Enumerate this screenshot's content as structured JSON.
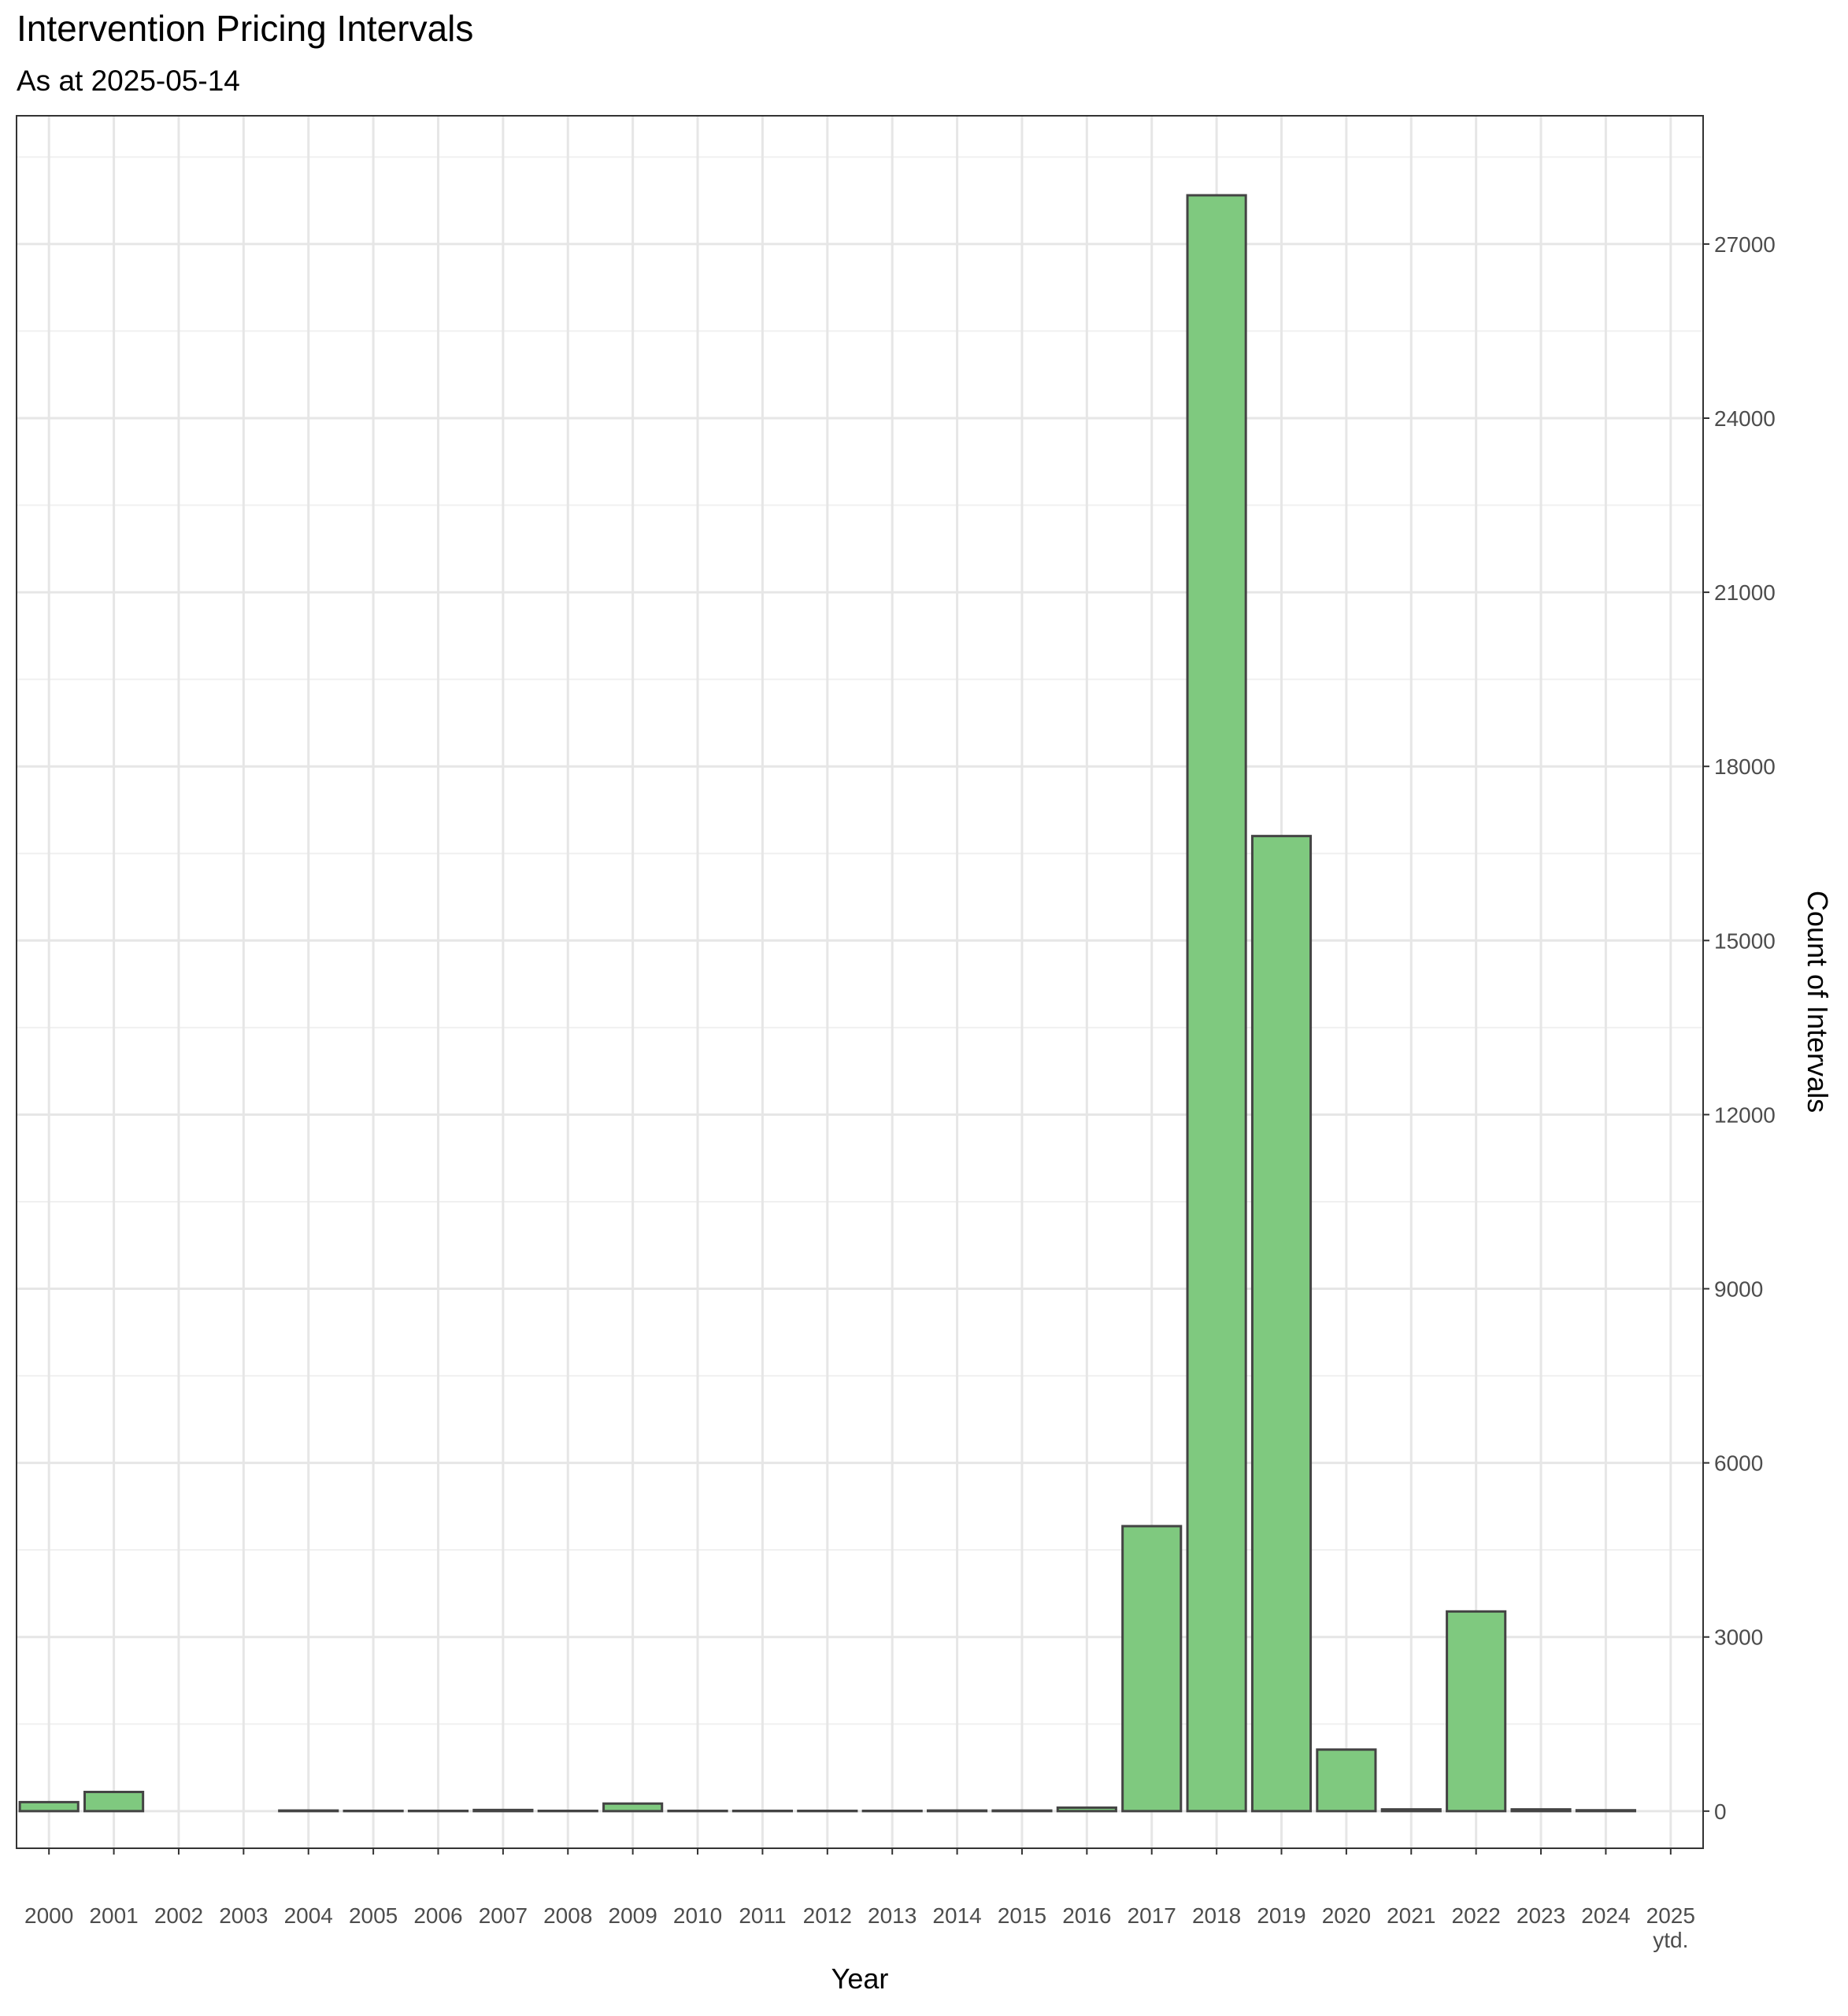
{
  "chart_data": {
    "type": "bar",
    "title": "Intervention Pricing Intervals",
    "subtitle": "As at 2025-05-14",
    "x_label": "Year",
    "y_label": "Count of Intervals",
    "categories": [
      "2000",
      "2001",
      "2002",
      "2003",
      "2004",
      "2005",
      "2006",
      "2007",
      "2008",
      "2009",
      "2010",
      "2011",
      "2012",
      "2013",
      "2014",
      "2015",
      "2016",
      "2017",
      "2018",
      "2019",
      "2020",
      "2021",
      "2022",
      "2023",
      "2024",
      "2025\nytd."
    ],
    "values": [
      155,
      330,
      0,
      0,
      10,
      5,
      5,
      20,
      5,
      130,
      5,
      5,
      5,
      5,
      10,
      10,
      60,
      4910,
      27840,
      16800,
      1060,
      30,
      3440,
      30,
      15,
      0
    ],
    "color": "#7fc97f",
    "edge_color": "#444444",
    "ylim": [
      -640,
      29210
    ],
    "yticks": [
      0,
      3000,
      6000,
      9000,
      12000,
      15000,
      18000,
      21000,
      24000,
      27000
    ],
    "y_axis_side": "right",
    "grid": true
  }
}
